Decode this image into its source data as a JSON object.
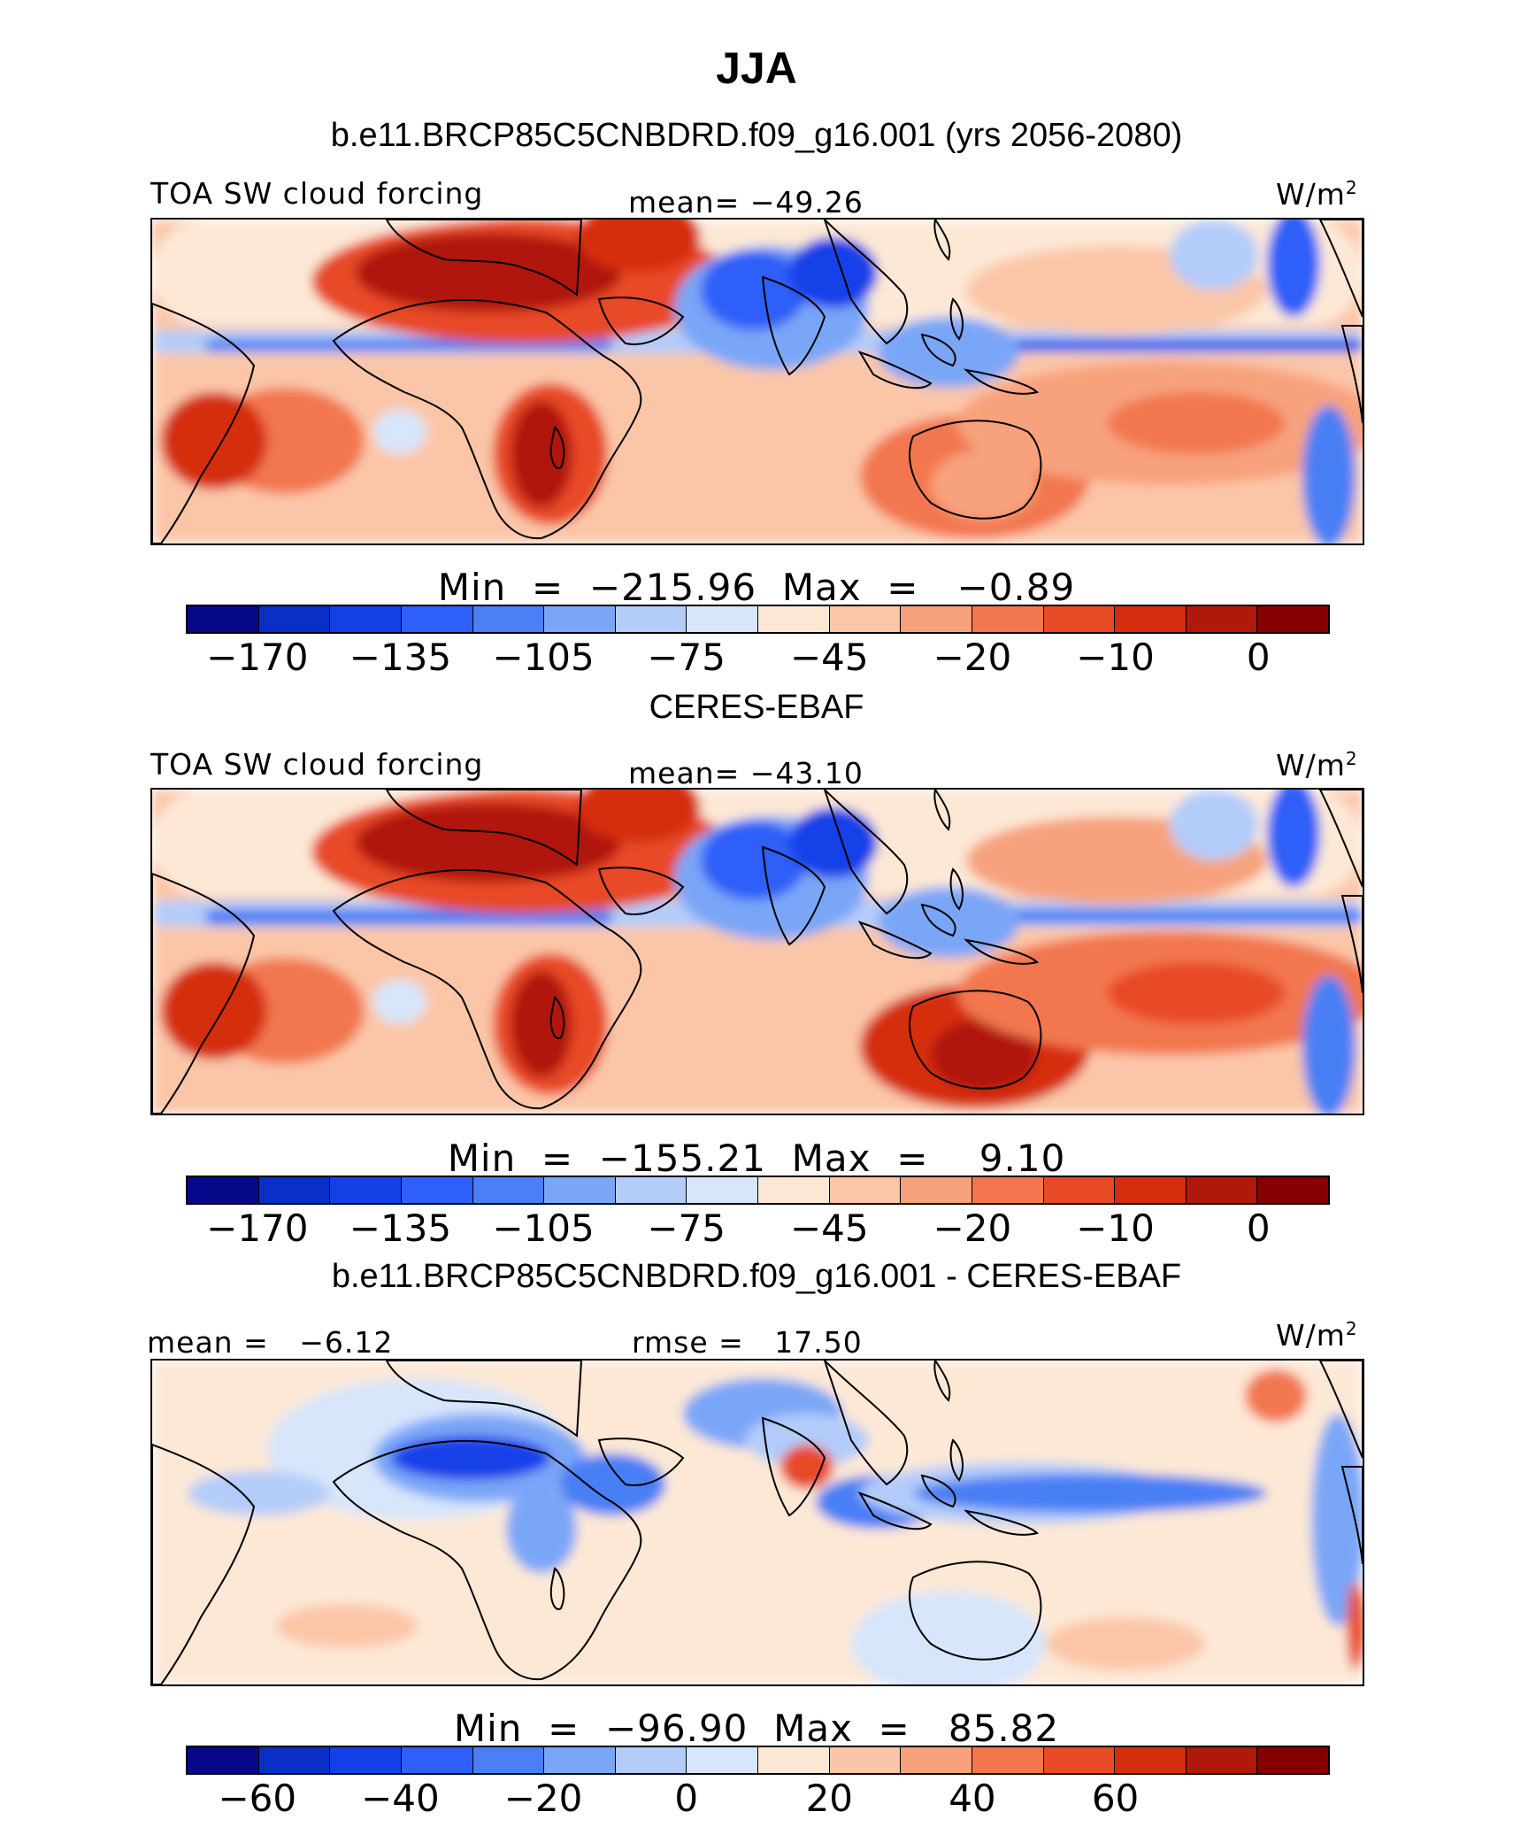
{
  "title": "JJA",
  "colors": [
    "#08088a",
    "#0a2fc7",
    "#1540e8",
    "#2e5ff8",
    "#4a7ff5",
    "#7aa6f7",
    "#b3ccf9",
    "#d7e6fb",
    "#fde8d6",
    "#fbc6a8",
    "#f7a27d",
    "#f2774f",
    "#e84a25",
    "#d52e0e",
    "#b0190a",
    "#850000"
  ],
  "panels": [
    {
      "heading": "b.e11.BRCP85C5CNBDRD.f09_g16.001 (yrs 2056-2080)",
      "left_label": "TOA SW cloud forcing",
      "center_label": "mean= −49.26",
      "units": "W/m",
      "units_sup": "2",
      "minmax": "Min  =  −215.96  Max  =   −0.89",
      "colorbar_ticks": [
        "−170",
        "−135",
        "−105",
        "−75",
        "−45",
        "−20",
        "−10",
        "0"
      ],
      "style": "model"
    },
    {
      "heading": "CERES-EBAF",
      "left_label": "TOA SW cloud forcing",
      "center_label": "mean= −43.10",
      "units": "W/m",
      "units_sup": "2",
      "minmax": "Min  =  −155.21  Max  =    9.10",
      "colorbar_ticks": [
        "−170",
        "−135",
        "−105",
        "−75",
        "−45",
        "−20",
        "−10",
        "0"
      ],
      "style": "obs"
    },
    {
      "heading": "b.e11.BRCP85C5CNBDRD.f09_g16.001 - CERES-EBAF",
      "left_label": "mean =   −6.12",
      "center_label": "rmse =   17.50",
      "units": "W/m",
      "units_sup": "2",
      "minmax": "Min  =  −96.90  Max  =   85.82",
      "colorbar_ticks": [
        "−60",
        "−40",
        "−20",
        "0",
        "20",
        "40",
        "60"
      ],
      "style": "diff"
    }
  ]
}
